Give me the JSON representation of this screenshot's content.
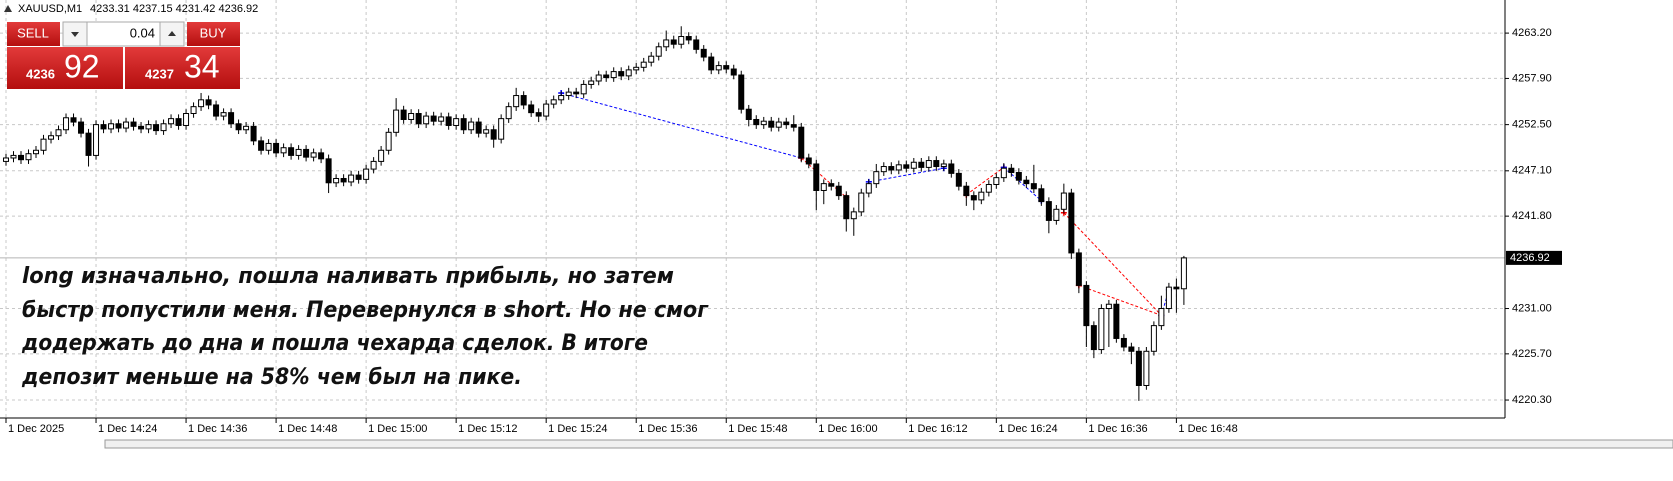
{
  "chart_data": {
    "type": "candlestick",
    "title": "XAUUSD,M1",
    "grid": true,
    "up_color": "#ffffff",
    "down_color": "#000000",
    "ylim": [
      4218.2,
      4267.07
    ],
    "yticks": [
      {
        "value": 4263.2,
        "label": "4263.20"
      },
      {
        "value": 4257.9,
        "label": "4257.90"
      },
      {
        "value": 4252.5,
        "label": "4252.50"
      },
      {
        "value": 4247.1,
        "label": "4247.10"
      },
      {
        "value": 4241.8,
        "label": "4241.80"
      },
      {
        "value": 4231.0,
        "label": "4231.00"
      },
      {
        "value": 4225.7,
        "label": "4225.70"
      },
      {
        "value": 4220.3,
        "label": "4220.30"
      }
    ],
    "xlim": [
      -0.8,
      199.8
    ],
    "xticks": [
      {
        "value": 0,
        "label": "1 Dec 2025"
      },
      {
        "value": 12,
        "label": "1 Dec 14:24"
      },
      {
        "value": 24,
        "label": "1 Dec 14:36"
      },
      {
        "value": 36,
        "label": "1 Dec 14:48"
      },
      {
        "value": 48,
        "label": "1 Dec 15:00"
      },
      {
        "value": 60,
        "label": "1 Dec 15:12"
      },
      {
        "value": 72,
        "label": "1 Dec 15:24"
      },
      {
        "value": 84,
        "label": "1 Dec 15:36"
      },
      {
        "value": 96,
        "label": "1 Dec 15:48"
      },
      {
        "value": 108,
        "label": "1 Dec 16:00"
      },
      {
        "value": 120,
        "label": "1 Dec 16:12"
      },
      {
        "value": 132,
        "label": "1 Dec 16:24"
      },
      {
        "value": 144,
        "label": "1 Dec 16:36"
      },
      {
        "value": 156,
        "label": "1 Dec 16:48"
      }
    ],
    "bid": 4236.92,
    "open": [
      4248.2,
      4248.6,
      4248.9,
      4248.4,
      4249.1,
      4249.5,
      4250.8,
      4251.2,
      4251.9,
      4253.3,
      4252.8,
      4251.5,
      4248.9,
      4252.5,
      4252.0,
      4252.6,
      4252.1,
      4252.8,
      4252.3,
      4252.0,
      4252.5,
      4251.8,
      4252.6,
      4253.2,
      4252.4,
      4253.8,
      4254.6,
      4255.4,
      4254.8,
      4253.5,
      4253.9,
      4252.6,
      4251.9,
      4252.3,
      4250.6,
      4249.5,
      4250.3,
      4249.2,
      4249.8,
      4248.9,
      4249.6,
      4248.7,
      4249.2,
      4248.5,
      4245.7,
      4246.2,
      4245.8,
      4246.6,
      4246.1,
      4247.3,
      4248.2,
      4249.5,
      4251.6,
      4254.2,
      4253.1,
      4253.8,
      4252.6,
      4253.5,
      4252.9,
      4253.4,
      4252.4,
      4253.2,
      4251.9,
      4252.8,
      4251.5,
      4251.9,
      4250.8,
      4253.2,
      4254.6,
      4255.9,
      4254.8,
      4253.9,
      4253.5,
      4254.9,
      4255.4,
      4255.9,
      4256.3,
      4256.1,
      4257.2,
      4257.6,
      4258.3,
      4258.0,
      4258.7,
      4258.2,
      4258.9,
      4259.2,
      4259.8,
      4260.5,
      4261.6,
      4262.4,
      4261.9,
      4262.8,
      4262.4,
      4261.3,
      4260.4,
      4258.9,
      4259.4,
      4259.0,
      4258.3,
      4254.3,
      4253.1,
      4252.5,
      4252.9,
      4252.2,
      4252.8,
      4252.5,
      4252.2,
      4248.6,
      4247.9,
      4244.8,
      4245.6,
      4245.3,
      4244.2,
      4241.5,
      4242.3,
      4244.5,
      4245.6,
      4247.0,
      4247.6,
      4247.2,
      4247.8,
      4247.4,
      4248.1,
      4247.5,
      4248.3,
      4247.6,
      4247.9,
      4246.8,
      4245.3,
      4244.2,
      4243.7,
      4244.6,
      4245.5,
      4246.3,
      4247.4,
      4246.9,
      4246.0,
      4245.6,
      4245.0,
      4243.5,
      4241.3,
      4242.6,
      4244.5,
      4237.5,
      4233.7,
      4229.0,
      4226.2,
      4231.0,
      4231.5,
      4227.5,
      4226.5,
      4226.0,
      4222.0,
      4226.0,
      4229.0,
      4231.0,
      4233.5,
      4233.31
    ],
    "high": [
      4249.1,
      4249.4,
      4249.4,
      4249.6,
      4250.0,
      4251.3,
      4251.7,
      4252.4,
      4253.8,
      4253.8,
      4253.3,
      4252.0,
      4253.0,
      4253.0,
      4253.1,
      4253.1,
      4253.3,
      4253.3,
      4252.8,
      4253.0,
      4253.0,
      4253.1,
      4253.7,
      4253.7,
      4254.3,
      4255.1,
      4256.2,
      4255.9,
      4255.3,
      4254.4,
      4254.4,
      4253.1,
      4252.8,
      4252.8,
      4251.1,
      4250.8,
      4250.8,
      4250.3,
      4250.3,
      4250.1,
      4250.1,
      4249.7,
      4249.7,
      4249.0,
      4246.7,
      4246.7,
      4247.1,
      4247.1,
      4247.8,
      4248.7,
      4250.0,
      4252.1,
      4255.6,
      4254.7,
      4254.3,
      4254.3,
      4254.0,
      4254.0,
      4253.9,
      4253.9,
      4253.7,
      4253.7,
      4253.3,
      4253.3,
      4252.4,
      4252.4,
      4253.7,
      4255.1,
      4256.8,
      4256.4,
      4255.3,
      4254.4,
      4255.4,
      4255.9,
      4256.4,
      4256.8,
      4256.8,
      4257.7,
      4258.1,
      4258.8,
      4258.8,
      4259.2,
      4259.2,
      4259.4,
      4259.7,
      4260.3,
      4261.0,
      4262.1,
      4263.5,
      4262.9,
      4264.0,
      4263.3,
      4262.9,
      4261.8,
      4260.9,
      4259.9,
      4259.9,
      4259.5,
      4258.8,
      4254.8,
      4253.6,
      4253.4,
      4253.4,
      4253.3,
      4253.3,
      4253.6,
      4252.7,
      4249.1,
      4248.4,
      4246.1,
      4246.1,
      4245.8,
      4244.7,
      4242.8,
      4245.0,
      4246.1,
      4247.9,
      4248.1,
      4248.1,
      4248.3,
      4248.3,
      4248.6,
      4248.6,
      4248.8,
      4248.8,
      4248.4,
      4248.4,
      4247.3,
      4245.8,
      4244.7,
      4245.1,
      4246.0,
      4246.8,
      4248.0,
      4247.9,
      4247.4,
      4246.5,
      4247.8,
      4245.5,
      4244.0,
      4243.1,
      4245.6,
      4245.0,
      4238.0,
      4234.2,
      4229.5,
      4231.5,
      4232.0,
      4232.0,
      4228.0,
      4227.0,
      4226.5,
      4226.5,
      4229.5,
      4232.5,
      4234.0,
      4234.5,
      4237.15
    ],
    "low": [
      4247.7,
      4248.1,
      4247.9,
      4247.9,
      4248.6,
      4249.0,
      4250.3,
      4250.7,
      4251.4,
      4252.3,
      4251.0,
      4247.6,
      4248.4,
      4251.5,
      4251.5,
      4251.6,
      4251.6,
      4251.8,
      4251.5,
      4251.5,
      4251.3,
      4251.3,
      4252.1,
      4251.9,
      4251.9,
      4253.3,
      4254.1,
      4254.3,
      4253.0,
      4253.0,
      4252.1,
      4251.4,
      4251.4,
      4250.1,
      4249.0,
      4249.0,
      4248.7,
      4248.7,
      4248.4,
      4248.4,
      4248.2,
      4248.2,
      4248.0,
      4244.5,
      4245.2,
      4245.3,
      4245.3,
      4245.6,
      4245.6,
      4246.8,
      4247.7,
      4249.0,
      4251.1,
      4252.6,
      4252.6,
      4252.1,
      4252.1,
      4252.4,
      4252.4,
      4251.9,
      4251.9,
      4251.4,
      4251.4,
      4251.0,
      4251.0,
      4249.8,
      4250.3,
      4252.7,
      4254.1,
      4254.3,
      4253.4,
      4252.8,
      4253.0,
      4254.4,
      4254.9,
      4255.4,
      4255.6,
      4255.6,
      4256.7,
      4257.1,
      4257.5,
      4257.5,
      4257.7,
      4257.7,
      4258.4,
      4258.7,
      4259.3,
      4260.0,
      4261.1,
      4261.4,
      4261.4,
      4261.9,
      4260.8,
      4259.9,
      4258.4,
      4258.4,
      4258.5,
      4257.8,
      4253.8,
      4252.3,
      4252.0,
      4252.0,
      4251.7,
      4251.7,
      4252.0,
      4251.7,
      4248.1,
      4247.4,
      4242.5,
      4243.2,
      4244.8,
      4243.7,
      4240.0,
      4239.5,
      4241.8,
      4244.0,
      4245.1,
      4246.5,
      4246.7,
      4246.7,
      4246.9,
      4246.9,
      4247.0,
      4247.0,
      4247.1,
      4247.1,
      4246.3,
      4244.8,
      4243.0,
      4242.5,
      4243.2,
      4244.1,
      4245.0,
      4245.8,
      4246.4,
      4245.5,
      4245.1,
      4244.5,
      4243.0,
      4239.8,
      4240.8,
      4242.1,
      4236.8,
      4232.8,
      4226.5,
      4225.2,
      4225.7,
      4226.5,
      4227.0,
      4226.0,
      4224.5,
      4220.2,
      4221.5,
      4225.5,
      4228.5,
      4230.5,
      4230.5,
      4231.42
    ],
    "close": [
      4248.6,
      4248.9,
      4248.4,
      4249.1,
      4249.5,
      4250.8,
      4251.2,
      4251.9,
      4253.3,
      4252.8,
      4251.5,
      4248.9,
      4252.5,
      4252.0,
      4252.6,
      4252.1,
      4252.8,
      4252.3,
      4252.0,
      4252.5,
      4251.8,
      4252.6,
      4253.2,
      4252.4,
      4253.8,
      4254.6,
      4255.4,
      4254.8,
      4253.5,
      4253.9,
      4252.6,
      4251.9,
      4252.3,
      4250.6,
      4249.5,
      4250.3,
      4249.2,
      4249.8,
      4248.9,
      4249.6,
      4248.7,
      4249.2,
      4248.5,
      4245.7,
      4246.2,
      4245.8,
      4246.6,
      4246.1,
      4247.3,
      4248.2,
      4249.5,
      4251.6,
      4254.2,
      4253.1,
      4253.8,
      4252.6,
      4253.5,
      4252.9,
      4253.4,
      4252.4,
      4253.2,
      4251.9,
      4252.8,
      4251.5,
      4251.9,
      4250.8,
      4253.2,
      4254.6,
      4255.9,
      4254.8,
      4253.9,
      4253.5,
      4254.9,
      4255.4,
      4255.9,
      4256.3,
      4256.1,
      4257.2,
      4257.6,
      4258.3,
      4258.0,
      4258.7,
      4258.2,
      4258.9,
      4259.2,
      4259.8,
      4260.5,
      4261.6,
      4262.4,
      4261.9,
      4262.8,
      4262.4,
      4261.3,
      4260.4,
      4258.9,
      4259.4,
      4259.0,
      4258.3,
      4254.3,
      4253.1,
      4252.5,
      4252.9,
      4252.2,
      4252.8,
      4252.5,
      4252.2,
      4248.6,
      4247.9,
      4244.8,
      4245.6,
      4245.3,
      4244.2,
      4241.5,
      4242.3,
      4244.5,
      4245.6,
      4247.0,
      4247.6,
      4247.2,
      4247.8,
      4247.4,
      4248.1,
      4247.5,
      4248.3,
      4247.6,
      4247.9,
      4246.8,
      4245.3,
      4244.2,
      4243.7,
      4244.6,
      4245.5,
      4246.3,
      4247.4,
      4246.9,
      4246.0,
      4245.6,
      4245.0,
      4243.5,
      4241.3,
      4242.6,
      4244.5,
      4237.5,
      4233.7,
      4229.0,
      4226.2,
      4231.0,
      4231.5,
      4227.5,
      4226.5,
      4226.0,
      4222.0,
      4226.0,
      4229.0,
      4231.0,
      4233.5,
      4233.3,
      4236.92
    ],
    "trades": [
      {
        "color": "#0000ff",
        "x": [
          74,
          106
        ],
        "y": [
          4256.2,
          4248.6
        ]
      },
      {
        "color": "#ff0000",
        "x": [
          106,
          112
        ],
        "y": [
          4248.6,
          4244.0
        ]
      },
      {
        "color": "#0000ff",
        "x": [
          115,
          125
        ],
        "y": [
          4245.8,
          4247.4
        ]
      },
      {
        "color": "#ff0000",
        "x": [
          128,
          133
        ],
        "y": [
          4244.3,
          4247.5
        ]
      },
      {
        "color": "#0000ff",
        "x": [
          133,
          138
        ],
        "y": [
          4247.5,
          4243.6
        ]
      },
      {
        "color": "#ff0000",
        "x": [
          141,
          154
        ],
        "y": [
          4242.2,
          4230.2
        ]
      },
      {
        "color": "#ff0000",
        "x": [
          143,
          154
        ],
        "y": [
          4233.7,
          4230.2
        ]
      },
      {
        "color": "#0000ff",
        "x": [
          154,
          155
        ],
        "y": [
          4230.2,
          4233.2
        ]
      }
    ],
    "annotation": [
      "long изначально, пошла наливать прибыль, но затем",
      "быстр попустили меня. Перевернулся в short. Но не смог",
      "додержать до дна и пошла чехарда сделок. В итоге",
      "депозит меньше на 58% чем был на пике."
    ]
  },
  "trade_panel": {
    "sell": "SELL",
    "buy": "BUY",
    "lot": "0.04",
    "bid_big": "4236",
    "bid_small": "92",
    "ask_big": "4237",
    "ask_small": "34"
  }
}
